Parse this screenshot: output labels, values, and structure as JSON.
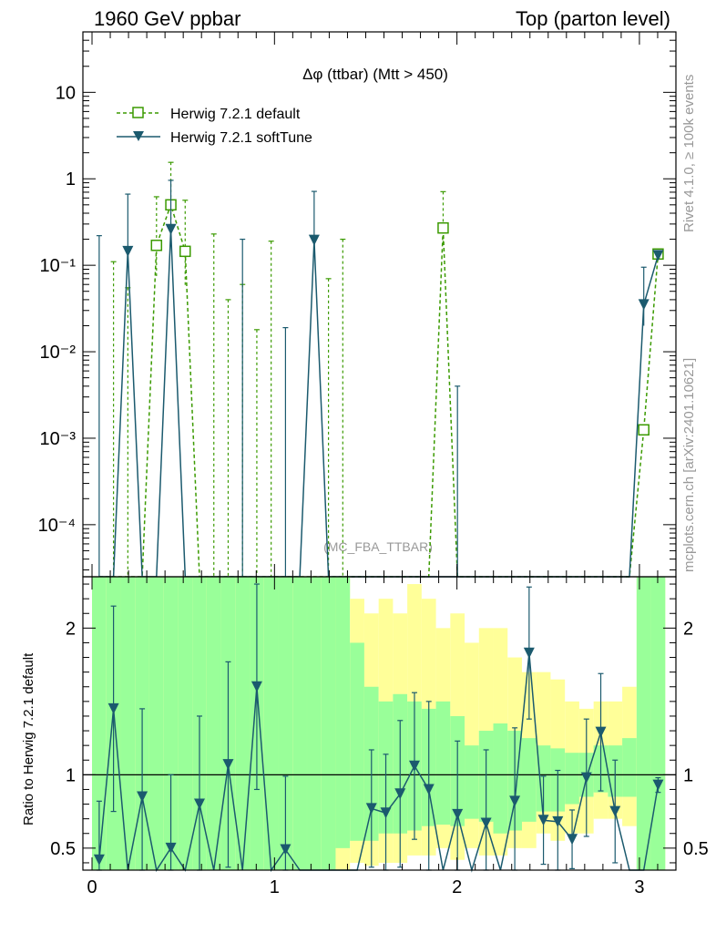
{
  "header": {
    "left": "1960 GeV ppbar",
    "right": "Top (parton level)"
  },
  "side": {
    "rivet": "Rivet 4.1.0, ≥ 100k events",
    "mcplots": "mcplots.cern.ch [arXiv:2401.10621]"
  },
  "chart_data": {
    "type": "line",
    "title": "Δφ (ttbar) (Mtt > 450)",
    "watermark": "(MC_FBA_TTBAR)",
    "xlabel": "",
    "ylabel_ratio": "Ratio to Herwig 7.2.1 default",
    "xlim": [
      -0.05,
      3.2
    ],
    "ylim_main": [
      2.5e-05,
      50
    ],
    "ylim_ratio": [
      0.35,
      2.35
    ],
    "x_ticks": [
      "0",
      "1",
      "2",
      "3"
    ],
    "y_ticks_main": [
      "10⁻⁴",
      "10⁻³",
      "10⁻²",
      "10⁻¹",
      "1",
      "10"
    ],
    "y_ticks_ratio": [
      "0.5",
      "1",
      "2"
    ],
    "bin_centers": [
      0.0393,
      0.1178,
      0.1963,
      0.2749,
      0.3534,
      0.432,
      0.5105,
      0.589,
      0.6676,
      0.7461,
      0.8247,
      0.9032,
      0.9817,
      1.0603,
      1.1388,
      1.2174,
      1.2959,
      1.3744,
      1.453,
      1.5315,
      1.6101,
      1.6886,
      1.7671,
      1.8457,
      1.9242,
      2.0028,
      2.0813,
      2.1598,
      2.2384,
      2.3169,
      2.3955,
      2.474,
      2.5525,
      2.6311,
      2.7096,
      2.7882,
      2.8667,
      2.9452,
      3.0238,
      3.1023
    ],
    "series": [
      {
        "name": "Herwig 7.2.1 default",
        "color": "#3b9a00",
        "style": "dashed",
        "marker": "open-square",
        "values": [
          0,
          0,
          0,
          0,
          0.17,
          0.5,
          0.145,
          0,
          0,
          0,
          0,
          0,
          0,
          0,
          0,
          0,
          0,
          0,
          0,
          0,
          0,
          0,
          0,
          0,
          0.27,
          0,
          0,
          0,
          0,
          0,
          0,
          0,
          0,
          0,
          0,
          0,
          0,
          0,
          0.00125,
          0.135
        ],
        "err_up": [
          0,
          0.11,
          0.055,
          0,
          0.45,
          1.05,
          0.42,
          0,
          0.23,
          0.04,
          0.06,
          0.018,
          0.19,
          0,
          0,
          0,
          0.07,
          0.2,
          0,
          0,
          0,
          0,
          0,
          0,
          0.44,
          0,
          0,
          0,
          0,
          0,
          0,
          0,
          0,
          0,
          0,
          0,
          0,
          0,
          0,
          0
        ],
        "err_dn": [
          0,
          0,
          0,
          0,
          0.1,
          0.2,
          0.09,
          0,
          0,
          0,
          0,
          0,
          0,
          0,
          0,
          0,
          0,
          0,
          0,
          0,
          0,
          0,
          0,
          0,
          0.09,
          0,
          0,
          0,
          0,
          0,
          0,
          0,
          0,
          0,
          0,
          0,
          0,
          0,
          0,
          0
        ]
      },
      {
        "name": "Herwig 7.2.1 softTune",
        "color": "#1b5a6e",
        "style": "solid",
        "marker": "filled-triangle-down",
        "values": [
          0,
          0,
          0.145,
          0,
          0,
          0.26,
          0,
          0,
          0,
          0,
          0,
          0,
          0,
          0,
          0,
          0.195,
          0,
          0,
          0,
          0,
          0,
          0,
          0,
          0,
          0,
          0,
          0,
          0,
          0,
          0,
          0,
          0,
          0,
          0,
          0,
          0,
          0,
          0,
          0.035,
          0.13
        ],
        "err_up": [
          0.22,
          0,
          0.52,
          0,
          0,
          0.7,
          0,
          0,
          0,
          0,
          0.2,
          0,
          0,
          0.019,
          0,
          0.52,
          0,
          0,
          0,
          0,
          0,
          0,
          0,
          0,
          0,
          0.004,
          0,
          0,
          0,
          0,
          0,
          0,
          0,
          0,
          0,
          0,
          0,
          0,
          0.06,
          0
        ],
        "err_dn": [
          0,
          0,
          0.05,
          0,
          0,
          0.09,
          0,
          0,
          0,
          0,
          0,
          0,
          0,
          0,
          0,
          0.06,
          0,
          0,
          0,
          0,
          0,
          0,
          0,
          0,
          0,
          0,
          0,
          0,
          0,
          0,
          0,
          0,
          0,
          0,
          0,
          0,
          0,
          0,
          0.015,
          0
        ]
      }
    ],
    "ratio": {
      "reference": "Herwig 7.2.1 default",
      "band_green": [
        [
          0.35,
          2.35
        ],
        [
          0.35,
          2.35
        ],
        [
          0.35,
          2.35
        ],
        [
          0.35,
          2.35
        ],
        [
          0.35,
          2.35
        ],
        [
          0.35,
          2.35
        ],
        [
          0.35,
          2.35
        ],
        [
          0.35,
          2.35
        ],
        [
          0.35,
          2.35
        ],
        [
          0.35,
          2.35
        ],
        [
          0.35,
          2.35
        ],
        [
          0.35,
          2.35
        ],
        [
          0.35,
          2.35
        ],
        [
          0.35,
          2.35
        ],
        [
          0.35,
          2.35
        ],
        [
          0.35,
          2.35
        ],
        [
          0.35,
          2.35
        ],
        [
          0.5,
          2.35
        ],
        [
          0.55,
          1.9
        ],
        [
          0.55,
          1.6
        ],
        [
          0.6,
          1.5
        ],
        [
          0.6,
          1.55
        ],
        [
          0.62,
          1.5
        ],
        [
          0.65,
          1.45
        ],
        [
          0.66,
          1.5
        ],
        [
          0.65,
          1.4
        ],
        [
          0.7,
          1.2
        ],
        [
          0.68,
          1.3
        ],
        [
          0.6,
          1.35
        ],
        [
          0.62,
          1.3
        ],
        [
          0.68,
          1.25
        ],
        [
          0.75,
          1.2
        ],
        [
          0.75,
          1.18
        ],
        [
          0.8,
          1.15
        ],
        [
          0.85,
          1.15
        ],
        [
          0.88,
          1.2
        ],
        [
          0.85,
          1.2
        ],
        [
          0.85,
          1.25
        ],
        [
          0.35,
          2.35
        ],
        [
          0.35,
          2.35
        ]
      ],
      "band_yellow": [
        [
          0.35,
          2.35
        ],
        [
          0.35,
          2.35
        ],
        [
          0.35,
          2.35
        ],
        [
          0.35,
          2.35
        ],
        [
          0.35,
          2.35
        ],
        [
          0.35,
          2.35
        ],
        [
          0.35,
          2.35
        ],
        [
          0.35,
          2.35
        ],
        [
          0.35,
          2.35
        ],
        [
          0.35,
          2.35
        ],
        [
          0.35,
          2.35
        ],
        [
          0.35,
          2.35
        ],
        [
          0.35,
          2.35
        ],
        [
          0.35,
          2.35
        ],
        [
          0.35,
          2.35
        ],
        [
          0.35,
          2.35
        ],
        [
          0.35,
          2.35
        ],
        [
          0.35,
          2.35
        ],
        [
          0.4,
          2.2
        ],
        [
          0.38,
          2.1
        ],
        [
          0.4,
          2.2
        ],
        [
          0.4,
          2.1
        ],
        [
          0.45,
          2.3
        ],
        [
          0.45,
          2.2
        ],
        [
          0.5,
          2.0
        ],
        [
          0.42,
          2.1
        ],
        [
          0.5,
          1.9
        ],
        [
          0.45,
          2.0
        ],
        [
          0.45,
          2.0
        ],
        [
          0.5,
          1.8
        ],
        [
          0.5,
          1.7
        ],
        [
          0.6,
          1.7
        ],
        [
          0.55,
          1.65
        ],
        [
          0.6,
          1.5
        ],
        [
          0.6,
          1.45
        ],
        [
          0.7,
          1.5
        ],
        [
          0.7,
          1.5
        ],
        [
          0.65,
          1.6
        ],
        [
          0.35,
          2.35
        ],
        [
          0.35,
          2.35
        ]
      ],
      "softtune_values": [
        0.42,
        1.45,
        0,
        0.85,
        0,
        0.5,
        0,
        0.8,
        0,
        1.07,
        0,
        1.6,
        0,
        0.49,
        0,
        0,
        0,
        0,
        0,
        0.77,
        0.74,
        0.87,
        1.06,
        0.9,
        0,
        0.73,
        0,
        0.67,
        0,
        0.82,
        1.83,
        0.69,
        0.68,
        0.56,
        0.98,
        1.29,
        0.75,
        0,
        0,
        0.93
      ],
      "softtune_err": [
        0.4,
        0.7,
        0,
        0.6,
        0,
        0.5,
        0,
        0.6,
        0,
        0.7,
        0,
        0.7,
        0,
        0.5,
        0,
        0,
        0,
        0,
        0,
        0.4,
        0.4,
        0.5,
        0.5,
        0.6,
        0,
        0.5,
        0,
        0.5,
        0,
        0.5,
        0.45,
        0.3,
        0.35,
        0.2,
        0.4,
        0.4,
        0.35,
        0,
        0,
        0.05
      ]
    },
    "legend": [
      "Herwig 7.2.1 default",
      "Herwig 7.2.1 softTune"
    ],
    "legend_position": "top-left"
  }
}
